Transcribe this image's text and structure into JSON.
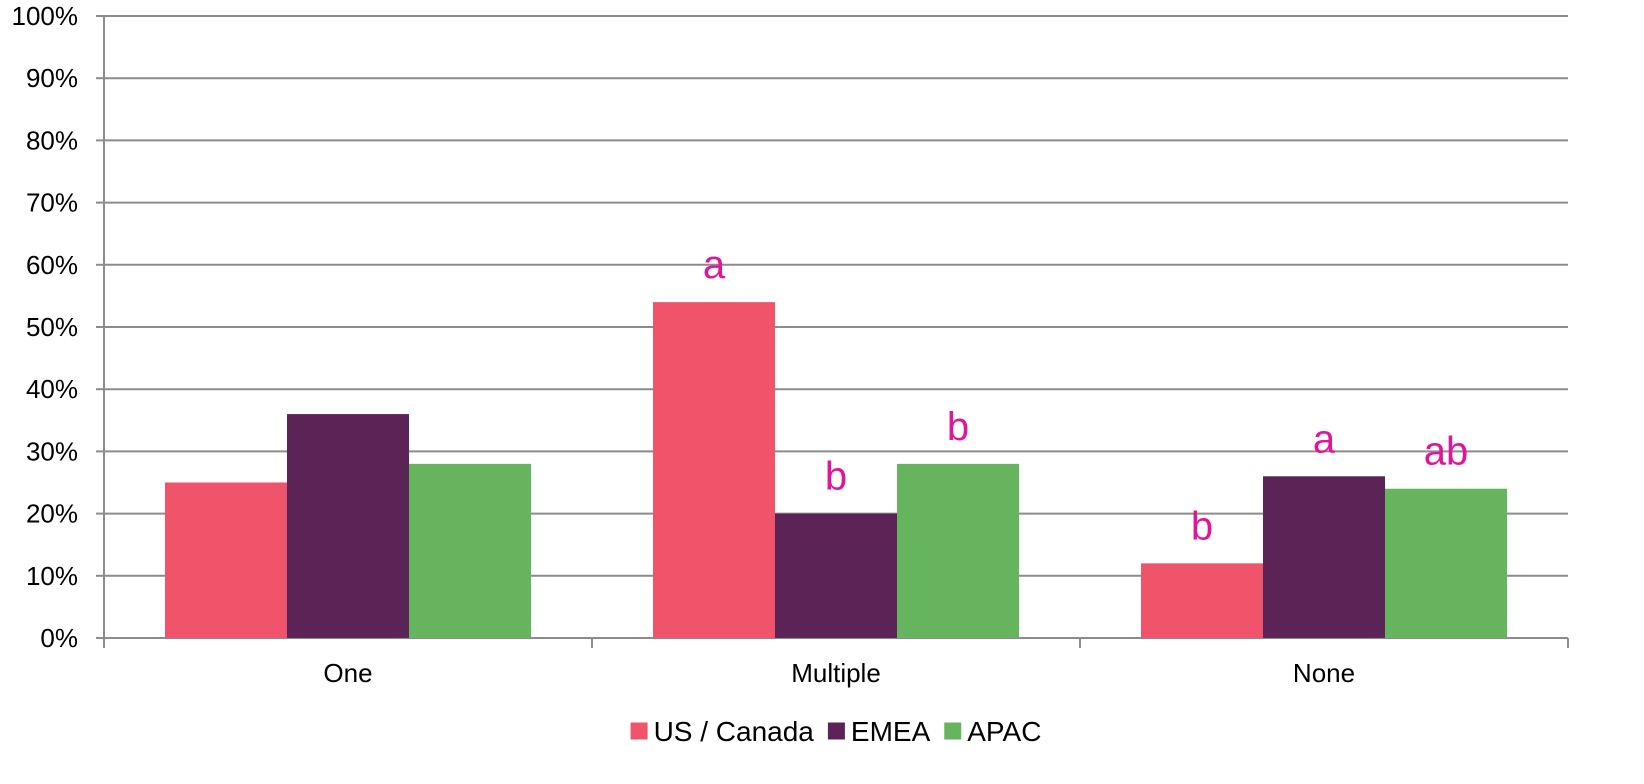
{
  "chart_data": {
    "type": "bar",
    "categories": [
      "One",
      "Multiple",
      "None"
    ],
    "series": [
      {
        "name": "US / Canada",
        "color": "#EF546B",
        "values": [
          25,
          54,
          12
        ],
        "annotations": [
          "",
          "a",
          "b"
        ]
      },
      {
        "name": "EMEA",
        "color": "#5B2356",
        "values": [
          36,
          20,
          26
        ],
        "annotations": [
          "",
          "b",
          "a"
        ]
      },
      {
        "name": "APAC",
        "color": "#66B55E",
        "values": [
          28,
          28,
          24
        ],
        "annotations": [
          "",
          "b",
          "ab"
        ]
      }
    ],
    "y_ticks": [
      "0%",
      "10%",
      "20%",
      "30%",
      "40%",
      "50%",
      "60%",
      "70%",
      "80%",
      "90%",
      "100%"
    ],
    "ylim": [
      0,
      100
    ],
    "grid": true,
    "legend_position": "bottom",
    "annotation_color": "#E0169A",
    "grid_color": "#8C8C8C"
  }
}
